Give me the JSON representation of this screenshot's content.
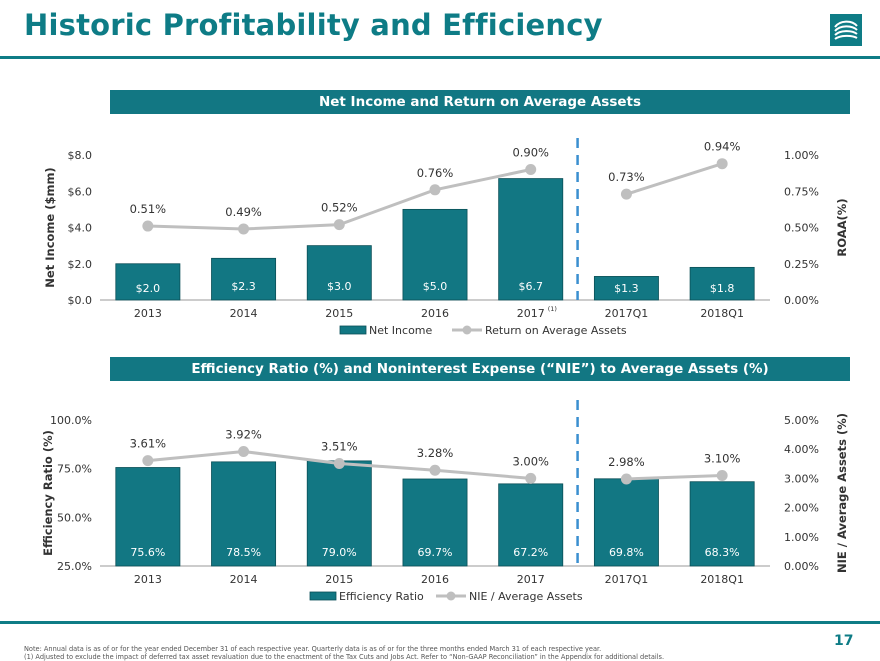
{
  "page": {
    "title": "Historic Profitability and Efficiency",
    "page_number": "17",
    "notes": {
      "note": "Note:  Annual data is as of or for the year ended December 31 of each respective year. Quarterly data is as of or for the three months ended March 31 of each respective year.",
      "footnote": "(1)      Adjusted  to exclude the impact of deferred tax asset revaluation due to the enactment of the Tax Cuts and Jobs Act. Refer to “Non-GAAP Reconciliation” in the Appendix for additional details."
    },
    "colors": {
      "brand": "#0e7c86",
      "bar": "#127783",
      "line": "#bfbfbf",
      "divider": "#3a8fd0"
    },
    "icons": {
      "logo": "wave-logo-icon"
    }
  },
  "chart_data": [
    {
      "type": "bar",
      "title": "Net Income and Return on Average Assets",
      "categories": [
        "2013",
        "2014",
        "2015",
        "2016",
        "2017",
        "2017Q1",
        "2018Q1"
      ],
      "category_footnotes": [
        "",
        "",
        "",
        "",
        "(1)",
        "",
        ""
      ],
      "ylabel": "Net Income ($mm)",
      "y2label": "ROAA(%)",
      "ylim": [
        0,
        8
      ],
      "y2lim": [
        0,
        1
      ],
      "yticks": [
        "$0.0",
        "$2.0",
        "$4.0",
        "$6.0",
        "$8.0"
      ],
      "y2ticks": [
        "0.00%",
        "0.25%",
        "0.50%",
        "0.75%",
        "1.00%"
      ],
      "series": [
        {
          "name": "Net Income",
          "kind": "bar",
          "axis": "left",
          "values": [
            2.0,
            2.3,
            3.0,
            5.0,
            6.7,
            1.3,
            1.8
          ],
          "labels": [
            "$2.0",
            "$2.3",
            "$3.0",
            "$5.0",
            "$6.7",
            "$1.3",
            "$1.8"
          ]
        },
        {
          "name": "Return on Average Assets",
          "kind": "line",
          "axis": "right",
          "values": [
            0.51,
            0.49,
            0.52,
            0.76,
            0.9,
            0.73,
            0.94
          ],
          "labels": [
            "0.51%",
            "0.49%",
            "0.52%",
            "0.76%",
            "0.90%",
            "0.73%",
            "0.94%"
          ]
        }
      ],
      "legend": "bottom",
      "grid": false
    },
    {
      "type": "bar",
      "title": "Efficiency Ratio (%) and Noninterest Expense (“NIE”) to Average Assets (%)",
      "categories": [
        "2013",
        "2014",
        "2015",
        "2016",
        "2017",
        "2017Q1",
        "2018Q1"
      ],
      "ylabel": "Efficiency Ratio (%)",
      "y2label": "NIE / Average Assets (%)",
      "ylim": [
        25,
        100
      ],
      "y2lim": [
        0,
        5
      ],
      "yticks": [
        "25.0%",
        "50.0%",
        "75.0%",
        "100.0%"
      ],
      "y2ticks": [
        "0.00%",
        "1.00%",
        "2.00%",
        "3.00%",
        "4.00%",
        "5.00%"
      ],
      "series": [
        {
          "name": "Efficiency  Ratio",
          "kind": "bar",
          "axis": "left",
          "values": [
            75.6,
            78.5,
            79.0,
            69.7,
            67.2,
            69.8,
            68.3
          ],
          "labels": [
            "75.6%",
            "78.5%",
            "79.0%",
            "69.7%",
            "67.2%",
            "69.8%",
            "68.3%"
          ]
        },
        {
          "name": "NIE / Average Assets",
          "kind": "line",
          "axis": "right",
          "values": [
            3.61,
            3.92,
            3.51,
            3.28,
            3.0,
            2.98,
            3.1
          ],
          "labels": [
            "3.61%",
            "3.92%",
            "3.51%",
            "3.28%",
            "3.00%",
            "2.98%",
            "3.10%"
          ]
        }
      ],
      "legend": "bottom",
      "grid": false
    }
  ]
}
